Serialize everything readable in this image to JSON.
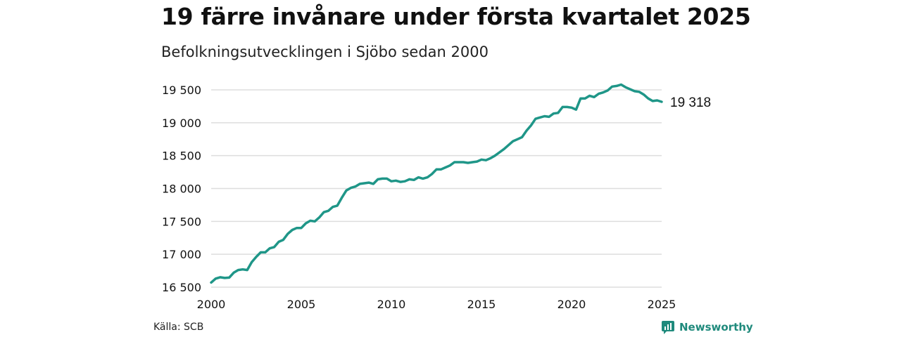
{
  "header": {
    "title": "19 färre invånare under första kvartalet 2025",
    "subtitle": "Befolkningsutvecklingen i Sjöbo sedan 2000"
  },
  "footer": {
    "source": "Källa: SCB",
    "brand": "Newsworthy"
  },
  "colors": {
    "line": "#1f9688",
    "grid": "#dddddd",
    "text": "#111111",
    "brand": "#1f8a7c"
  },
  "chart_data": {
    "type": "line",
    "title": "19 färre invånare under första kvartalet 2025",
    "subtitle": "Befolkningsutvecklingen i Sjöbo sedan 2000",
    "xlabel": "",
    "ylabel": "",
    "xlim": [
      2000,
      2025
    ],
    "ylim": [
      16500,
      19600
    ],
    "grid": true,
    "x_ticks": [
      2000,
      2005,
      2010,
      2015,
      2020,
      2025
    ],
    "x_tick_labels": [
      "2000",
      "2005",
      "2010",
      "2015",
      "2020",
      "2025"
    ],
    "y_ticks": [
      16500,
      17000,
      17500,
      18000,
      18500,
      19000,
      19500
    ],
    "y_tick_labels": [
      "16 500",
      "17 000",
      "17 500",
      "18 000",
      "18 500",
      "19 000",
      "19 500"
    ],
    "end_label": "19 318",
    "series": [
      {
        "x": [
          2000.0,
          2000.25,
          2000.5,
          2000.75,
          2001.0,
          2001.25,
          2001.5,
          2001.75,
          2002.0,
          2002.25,
          2002.5,
          2002.75,
          2003.0,
          2003.25,
          2003.5,
          2003.75,
          2004.0,
          2004.25,
          2004.5,
          2004.75,
          2005.0,
          2005.25,
          2005.5,
          2005.75,
          2006.0,
          2006.25,
          2006.5,
          2006.75,
          2007.0,
          2007.25,
          2007.5,
          2007.75,
          2008.0,
          2008.25,
          2008.5,
          2008.75,
          2009.0,
          2009.25,
          2009.5,
          2009.75,
          2010.0,
          2010.25,
          2010.5,
          2010.75,
          2011.0,
          2011.25,
          2011.5,
          2011.75,
          2012.0,
          2012.25,
          2012.5,
          2012.75,
          2013.0,
          2013.25,
          2013.5,
          2013.75,
          2014.0,
          2014.25,
          2014.5,
          2014.75,
          2015.0,
          2015.25,
          2015.5,
          2015.75,
          2016.0,
          2016.25,
          2016.5,
          2016.75,
          2017.0,
          2017.25,
          2017.5,
          2017.75,
          2018.0,
          2018.25,
          2018.5,
          2018.75,
          2019.0,
          2019.25,
          2019.5,
          2019.75,
          2020.0,
          2020.25,
          2020.5,
          2020.75,
          2021.0,
          2021.25,
          2021.5,
          2021.75,
          2022.0,
          2022.25,
          2022.5,
          2022.75,
          2023.0,
          2023.25,
          2023.5,
          2023.75,
          2024.0,
          2024.25,
          2024.5,
          2024.75,
          2025.0
        ],
        "values": [
          16570,
          16630,
          16650,
          16640,
          16645,
          16720,
          16760,
          16770,
          16760,
          16880,
          16960,
          17030,
          17030,
          17090,
          17110,
          17190,
          17220,
          17310,
          17370,
          17400,
          17400,
          17470,
          17510,
          17500,
          17560,
          17640,
          17660,
          17720,
          17740,
          17860,
          17970,
          18010,
          18030,
          18070,
          18080,
          18090,
          18070,
          18140,
          18150,
          18150,
          18110,
          18120,
          18100,
          18110,
          18140,
          18130,
          18170,
          18150,
          18170,
          18220,
          18290,
          18290,
          18320,
          18350,
          18400,
          18400,
          18400,
          18390,
          18400,
          18410,
          18440,
          18430,
          18460,
          18500,
          18550,
          18600,
          18660,
          18720,
          18750,
          18780,
          18880,
          18960,
          19060,
          19080,
          19100,
          19090,
          19140,
          19150,
          19240,
          19240,
          19230,
          19200,
          19370,
          19370,
          19410,
          19390,
          19440,
          19460,
          19490,
          19550,
          19560,
          19580,
          19540,
          19510,
          19480,
          19470,
          19430,
          19370,
          19330,
          19340,
          19318
        ]
      }
    ]
  }
}
